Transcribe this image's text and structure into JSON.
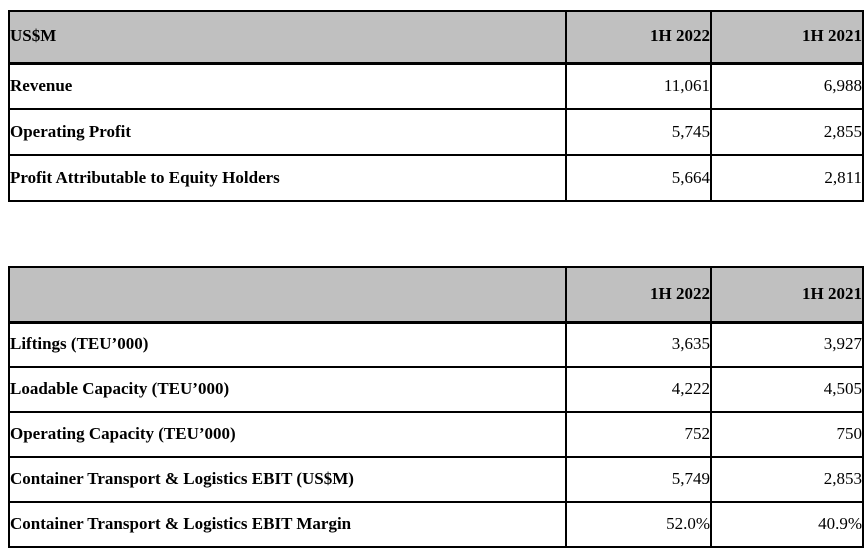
{
  "colors": {
    "header_bg": "#c0c0c0",
    "border": "#000000",
    "background": "#ffffff"
  },
  "financial_table": {
    "header": {
      "col1": "US$M",
      "col2": "1H 2022",
      "col3": "1H 2021"
    },
    "rows": [
      {
        "label": "Revenue",
        "v2022": "11,061",
        "v2021": "6,988"
      },
      {
        "label": "Operating Profit",
        "v2022": "5,745",
        "v2021": "2,855"
      },
      {
        "label": "Profit Attributable to Equity Holders",
        "v2022": "5,664",
        "v2021": "2,811"
      }
    ]
  },
  "operations_table": {
    "header": {
      "col1": "",
      "col2": "1H 2022",
      "col3": "1H 2021"
    },
    "rows": [
      {
        "label": "Liftings (TEU’000)",
        "v2022": "3,635",
        "v2021": "3,927"
      },
      {
        "label": "Loadable Capacity (TEU’000)",
        "v2022": "4,222",
        "v2021": "4,505"
      },
      {
        "label": "Operating Capacity (TEU’000)",
        "v2022": "752",
        "v2021": "750"
      },
      {
        "label": "Container Transport & Logistics EBIT (US$M)",
        "v2022": "5,749",
        "v2021": "2,853"
      },
      {
        "label": "Container Transport & Logistics EBIT Margin",
        "v2022": "52.0%",
        "v2021": "40.9%"
      }
    ]
  }
}
